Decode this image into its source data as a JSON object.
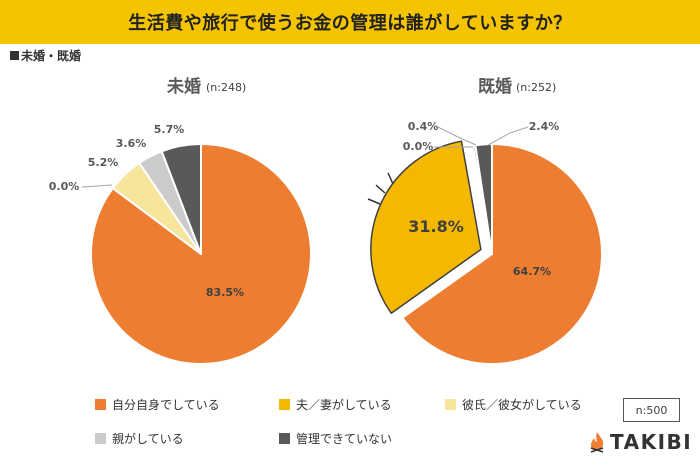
{
  "header": {
    "title": "生活費や旅行で使うお金の管理は誰がしていますか？"
  },
  "section_label": "未婚・既婚",
  "chart_data": [
    {
      "type": "pie",
      "title": "未婚",
      "sample": "(n:248)",
      "slices": [
        {
          "name": "自分自身でしている",
          "value": 83.5,
          "label": "83.5%",
          "color": "#ed7d31"
        },
        {
          "name": "夫／妻がしている",
          "value": 0.0,
          "label": "0.0%",
          "color": "#f5b800"
        },
        {
          "name": "彼氏／彼女がしている",
          "value": 5.2,
          "label": "5.2%",
          "color": "#f6e59b"
        },
        {
          "name": "親がしている",
          "value": 3.6,
          "label": "3.6%",
          "color": "#cbcbcb"
        },
        {
          "name": "管理できていない",
          "value": 5.7,
          "label": "5.7%",
          "color": "#595959"
        }
      ]
    },
    {
      "type": "pie",
      "title": "既婚",
      "sample": "(n:252)",
      "slices": [
        {
          "name": "自分自身でしている",
          "value": 64.7,
          "label": "64.7%",
          "color": "#ed7d31"
        },
        {
          "name": "夫／妻がしている",
          "value": 31.8,
          "label": "31.8%",
          "color": "#f5b800"
        },
        {
          "name": "彼氏／彼女がしている",
          "value": 0.0,
          "label": "0.0%",
          "color": "#f6e59b"
        },
        {
          "name": "親がしている",
          "value": 0.4,
          "label": "0.4%",
          "color": "#cbcbcb"
        },
        {
          "name": "管理できていない",
          "value": 2.4,
          "label": "2.4%",
          "color": "#595959"
        }
      ]
    }
  ],
  "legend": [
    {
      "label": "自分自身でしている",
      "color": "#ed7d31"
    },
    {
      "label": "夫／妻がしている",
      "color": "#f5b800"
    },
    {
      "label": "彼氏／彼女がしている",
      "color": "#f6e59b"
    },
    {
      "label": "親がしている",
      "color": "#cbcbcb"
    },
    {
      "label": "管理できていない",
      "color": "#595959"
    }
  ],
  "sample_total": "n:500",
  "brand": {
    "name": "TAKIBI",
    "accent": "#f08030"
  }
}
